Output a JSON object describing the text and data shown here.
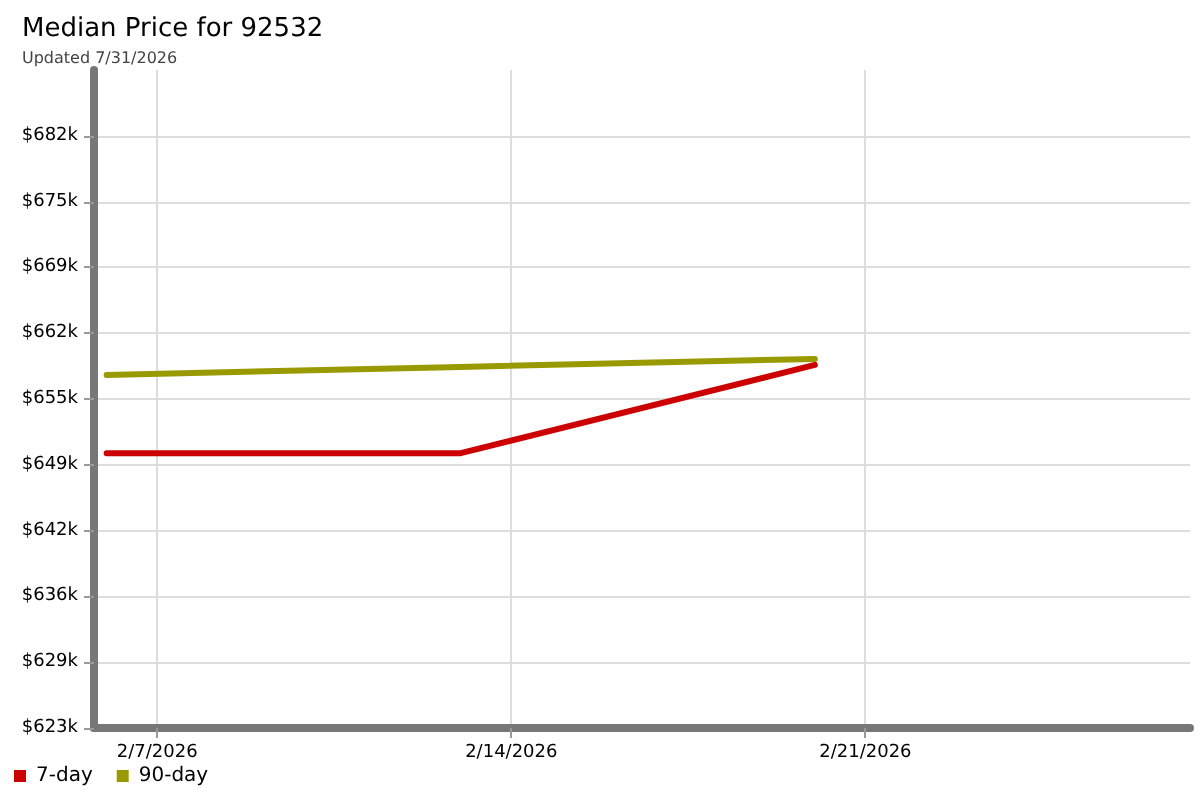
{
  "chart_data": {
    "type": "line",
    "title": "Median Price for 92532",
    "subtitle": "Updated 7/31/2026",
    "x": [
      "2026-02-06",
      "2026-02-13",
      "2026-02-20"
    ],
    "series": [
      {
        "name": "7-day",
        "color": "#cc0000",
        "values": [
          650.0,
          650.0,
          658.8
        ]
      },
      {
        "name": "90-day",
        "color": "#999900",
        "values": [
          657.8,
          658.6,
          659.4
        ]
      }
    ],
    "xlim": [
      "2026-02-05T18:00",
      "2026-02-27T10:00"
    ],
    "xticks": [
      {
        "value": "2026-02-07",
        "label": "2/7/2026"
      },
      {
        "value": "2026-02-14",
        "label": "2/14/2026"
      },
      {
        "value": "2026-02-21",
        "label": "2/21/2026"
      }
    ],
    "ylim": [
      622.6,
      688.2
    ],
    "yticks": [
      {
        "value": 622.6,
        "label": "$623k"
      },
      {
        "value": 629.16,
        "label": "$629k"
      },
      {
        "value": 635.72,
        "label": "$636k"
      },
      {
        "value": 642.28,
        "label": "$642k"
      },
      {
        "value": 648.84,
        "label": "$649k"
      },
      {
        "value": 655.4,
        "label": "$655k"
      },
      {
        "value": 661.96,
        "label": "$662k"
      },
      {
        "value": 668.52,
        "label": "$669k"
      },
      {
        "value": 675.08,
        "label": "$675k"
      },
      {
        "value": 681.64,
        "label": "$682k"
      }
    ],
    "grid": true,
    "legend": "bottom left",
    "marker": "none",
    "line_style": "solid"
  }
}
